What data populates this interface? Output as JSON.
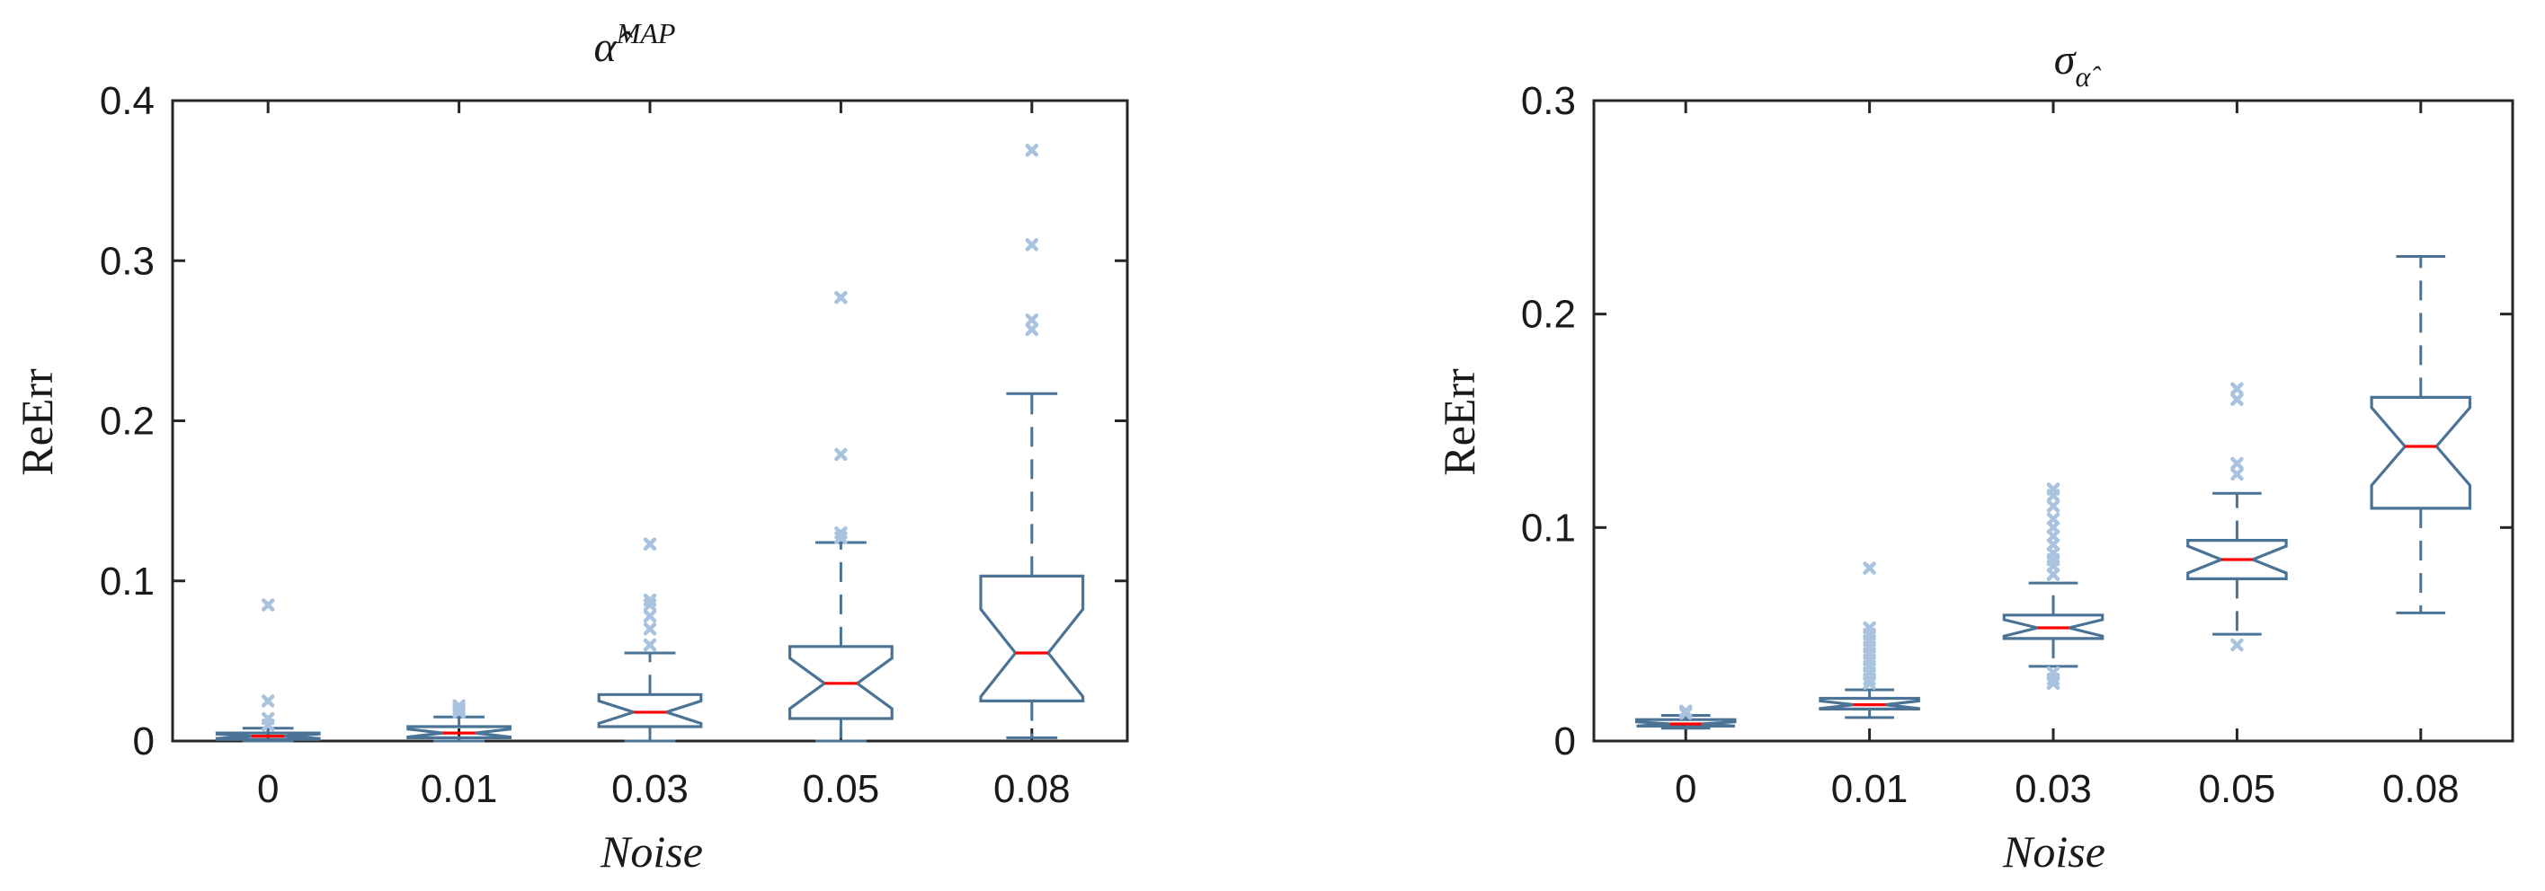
{
  "colors": {
    "box": "#4a7396",
    "median": "#ff0000",
    "outlier": "#a9c3df",
    "axis": "#262626"
  },
  "chart_data": [
    {
      "type": "box",
      "title": {
        "base": "α̂",
        "superscript": "MAP"
      },
      "xlabel": "Noise",
      "ylabel": "ReErr",
      "ylim": [
        0,
        0.4
      ],
      "yticks": [
        0,
        0.1,
        0.2,
        0.3,
        0.4
      ],
      "ytick_labels": [
        "0",
        "0.1",
        "0.2",
        "0.3",
        "0.4"
      ],
      "categories": [
        "0",
        "0.01",
        "0.03",
        "0.05",
        "0.08"
      ],
      "notched": true,
      "boxes": [
        {
          "category": "0",
          "whisker_low": 0.0,
          "q1": 0.001,
          "median": 0.003,
          "q3": 0.005,
          "whisker_high": 0.008,
          "outliers": [
            0.085,
            0.025,
            0.014,
            0.01
          ]
        },
        {
          "category": "0.01",
          "whisker_low": 0.0,
          "q1": 0.002,
          "median": 0.005,
          "q3": 0.009,
          "whisker_high": 0.015,
          "outliers": [
            0.022,
            0.02,
            0.018
          ]
        },
        {
          "category": "0.03",
          "whisker_low": 0.0,
          "q1": 0.009,
          "median": 0.018,
          "q3": 0.029,
          "whisker_high": 0.055,
          "outliers": [
            0.123,
            0.088,
            0.085,
            0.078,
            0.07,
            0.06
          ]
        },
        {
          "category": "0.05",
          "whisker_low": 0.0,
          "q1": 0.014,
          "median": 0.036,
          "q3": 0.059,
          "whisker_high": 0.124,
          "outliers": [
            0.277,
            0.179,
            0.13,
            0.127
          ]
        },
        {
          "category": "0.08",
          "whisker_low": 0.002,
          "q1": 0.025,
          "median": 0.055,
          "q3": 0.103,
          "whisker_high": 0.217,
          "outliers": [
            0.369,
            0.31,
            0.263,
            0.257
          ]
        }
      ]
    },
    {
      "type": "box",
      "title": {
        "base": "σ",
        "subscript": "α̂"
      },
      "xlabel": "Noise",
      "ylabel": "ReErr",
      "ylim": [
        0,
        0.3
      ],
      "yticks": [
        0,
        0.1,
        0.2,
        0.3
      ],
      "ytick_labels": [
        "0",
        "0.1",
        "0.2",
        "0.3"
      ],
      "categories": [
        "0",
        "0.01",
        "0.03",
        "0.05",
        "0.08"
      ],
      "notched": true,
      "boxes": [
        {
          "category": "0",
          "whisker_low": 0.006,
          "q1": 0.007,
          "median": 0.008,
          "q3": 0.01,
          "whisker_high": 0.012,
          "outliers": [
            0.014,
            0.013
          ]
        },
        {
          "category": "0.01",
          "whisker_low": 0.011,
          "q1": 0.015,
          "median": 0.017,
          "q3": 0.02,
          "whisker_high": 0.024,
          "outliers": [
            0.081,
            0.053,
            0.05,
            0.047,
            0.044,
            0.041,
            0.038,
            0.035,
            0.032,
            0.029,
            0.027
          ]
        },
        {
          "category": "0.03",
          "whisker_low": 0.035,
          "q1": 0.048,
          "median": 0.053,
          "q3": 0.059,
          "whisker_high": 0.074,
          "outliers": [
            0.118,
            0.115,
            0.11,
            0.104,
            0.1,
            0.096,
            0.092,
            0.088,
            0.085,
            0.082,
            0.078,
            0.032,
            0.029,
            0.027
          ]
        },
        {
          "category": "0.05",
          "whisker_low": 0.05,
          "q1": 0.076,
          "median": 0.085,
          "q3": 0.094,
          "whisker_high": 0.116,
          "outliers": [
            0.165,
            0.16,
            0.13,
            0.125,
            0.045
          ]
        },
        {
          "category": "0.08",
          "whisker_low": 0.06,
          "q1": 0.109,
          "median": 0.138,
          "q3": 0.161,
          "whisker_high": 0.227,
          "outliers": []
        }
      ]
    }
  ]
}
